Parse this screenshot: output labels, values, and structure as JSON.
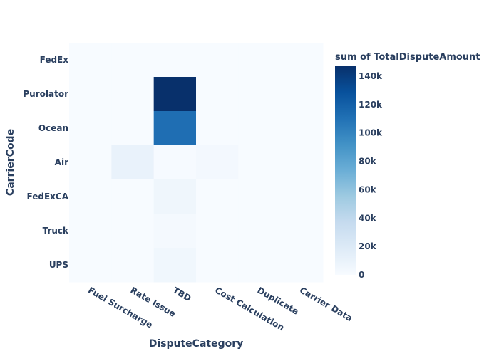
{
  "chart_data": {
    "type": "heatmap",
    "x_title": "DisputeCategory",
    "y_title": "CarrierCode",
    "x_categories": [
      "Fuel Surcharge",
      "Rate Issue",
      "TBD",
      "Cost Calculation",
      "Duplicate",
      "Carrier Data"
    ],
    "y_categories": [
      "FedEx",
      "Purolator",
      "Ocean",
      "Air",
      "FedExCA",
      "Truck",
      "UPS"
    ],
    "z": [
      [
        0,
        0,
        0,
        0,
        0,
        0
      ],
      [
        0,
        0,
        147000,
        0,
        0,
        0
      ],
      [
        0,
        0,
        112000,
        0,
        0,
        0
      ],
      [
        0,
        10000,
        1000,
        3000,
        0,
        0
      ],
      [
        0,
        0,
        6000,
        0,
        0,
        0
      ],
      [
        0,
        0,
        2000,
        0,
        0,
        0
      ],
      [
        0,
        0,
        5000,
        0,
        0,
        0
      ]
    ],
    "zrange": [
      0,
      147000
    ],
    "colorbar": {
      "title": "sum of TotalDisputeAmount",
      "tick_values": [
        0,
        20000,
        40000,
        60000,
        80000,
        100000,
        120000,
        140000
      ],
      "tick_labels": [
        "0",
        "20k",
        "40k",
        "60k",
        "80k",
        "100k",
        "120k",
        "140k"
      ]
    },
    "colorscale": [
      "#f7fbff",
      "#deebf7",
      "#c6dbef",
      "#9ecae1",
      "#6baed6",
      "#4292c6",
      "#2171b5",
      "#08519c",
      "#08306b"
    ],
    "grid": false
  }
}
